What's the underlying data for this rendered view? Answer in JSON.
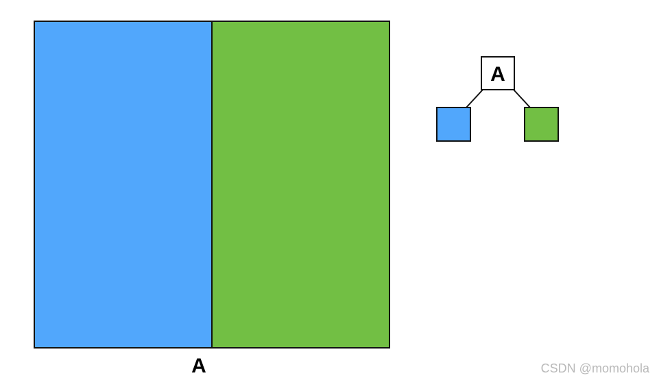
{
  "colors": {
    "left_region": "#51a7fc",
    "right_region": "#72bf44",
    "stroke": "#111111",
    "node_fill": "#ffffff"
  },
  "partition": {
    "split_label": "A"
  },
  "tree": {
    "root_label": "A",
    "left_child_color": "#51a7fc",
    "right_child_color": "#72bf44"
  },
  "watermark": "CSDN @momohola"
}
